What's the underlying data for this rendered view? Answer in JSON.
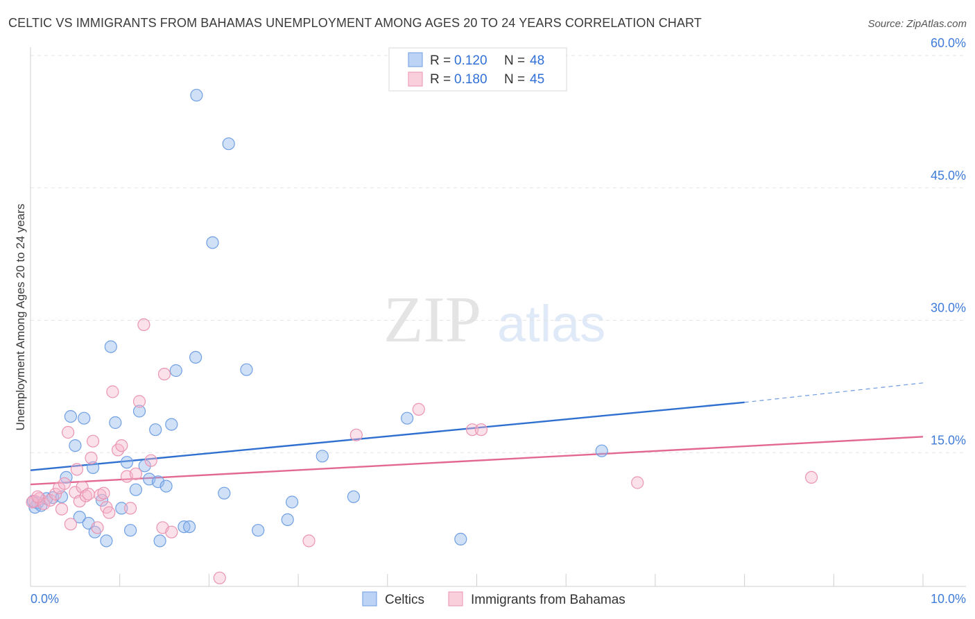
{
  "title": "CELTIC VS IMMIGRANTS FROM BAHAMAS UNEMPLOYMENT AMONG AGES 20 TO 24 YEARS CORRELATION CHART",
  "source": "Source: ZipAtlas.com",
  "watermark": {
    "zip": "ZIP",
    "atlas": "atlas"
  },
  "chart_data": {
    "type": "scatter",
    "title": "CELTIC VS IMMIGRANTS FROM BAHAMAS UNEMPLOYMENT AMONG AGES 20 TO 24 YEARS CORRELATION CHART",
    "xlabel": "",
    "ylabel": "Unemployment Among Ages 20 to 24 years",
    "xlim": [
      0,
      10
    ],
    "ylim": [
      0,
      60
    ],
    "x_tick_labels": {
      "min": "0.0%",
      "max": "10.0%"
    },
    "y_ticks": [
      {
        "value": 15,
        "label": "15.0%"
      },
      {
        "value": 30,
        "label": "30.0%"
      },
      {
        "value": 45,
        "label": "45.0%"
      },
      {
        "value": 60,
        "label": "60.0%"
      }
    ],
    "legend": {
      "rows": [
        {
          "r_label": "R = ",
          "r_value": "0.120",
          "n_label": "N = ",
          "n_value": "48"
        },
        {
          "r_label": "R = ",
          "r_value": "0.180",
          "n_label": "N = ",
          "n_value": "45"
        }
      ]
    },
    "series": [
      {
        "name": "Celtics",
        "color": "#8fb6ec",
        "stroke": "#6f9fe3",
        "line_color": "#2f6fd0",
        "trend": {
          "x0": 0,
          "y0": 13.0,
          "x1": 8.0,
          "y1": 20.7,
          "dash_to_x": 10.0,
          "dash_to_y": 22.9
        },
        "points": [
          [
            0.05,
            8.8
          ],
          [
            0.08,
            9.3
          ],
          [
            0.12,
            9.0
          ],
          [
            0.18,
            9.8
          ],
          [
            0.25,
            9.9
          ],
          [
            0.35,
            10.0
          ],
          [
            0.4,
            12.2
          ],
          [
            0.45,
            19.1
          ],
          [
            0.5,
            15.8
          ],
          [
            0.55,
            7.7
          ],
          [
            0.6,
            18.9
          ],
          [
            0.65,
            7.0
          ],
          [
            0.7,
            13.3
          ],
          [
            0.72,
            6.0
          ],
          [
            0.8,
            9.6
          ],
          [
            0.85,
            5.0
          ],
          [
            0.9,
            27.0
          ],
          [
            0.95,
            18.4
          ],
          [
            1.02,
            8.7
          ],
          [
            1.08,
            13.9
          ],
          [
            1.12,
            6.2
          ],
          [
            1.18,
            10.8
          ],
          [
            1.22,
            19.7
          ],
          [
            1.28,
            13.5
          ],
          [
            1.33,
            12.0
          ],
          [
            1.4,
            17.6
          ],
          [
            1.43,
            11.7
          ],
          [
            1.45,
            5.0
          ],
          [
            1.52,
            11.2
          ],
          [
            1.58,
            18.2
          ],
          [
            1.63,
            24.3
          ],
          [
            1.72,
            6.6
          ],
          [
            1.78,
            6.6
          ],
          [
            1.85,
            25.8
          ],
          [
            1.86,
            55.5
          ],
          [
            2.04,
            38.8
          ],
          [
            2.17,
            10.4
          ],
          [
            2.22,
            50.0
          ],
          [
            2.42,
            24.4
          ],
          [
            2.55,
            6.2
          ],
          [
            2.88,
            7.4
          ],
          [
            2.93,
            9.4
          ],
          [
            3.27,
            14.6
          ],
          [
            3.62,
            10.0
          ],
          [
            4.22,
            18.9
          ],
          [
            4.82,
            5.2
          ],
          [
            6.4,
            15.2
          ],
          [
            0.03,
            9.5
          ]
        ]
      },
      {
        "name": "Immigrants from Bahamas",
        "color": "#f5b8cc",
        "stroke": "#ea94b1",
        "line_color": "#e2688f",
        "trend": {
          "x0": 0,
          "y0": 11.4,
          "x1": 10.0,
          "y1": 16.8
        },
        "points": [
          [
            0.05,
            9.5
          ],
          [
            0.1,
            9.8
          ],
          [
            0.15,
            9.2
          ],
          [
            0.22,
            9.6
          ],
          [
            0.28,
            10.3
          ],
          [
            0.32,
            11.0
          ],
          [
            0.35,
            8.6
          ],
          [
            0.38,
            11.5
          ],
          [
            0.42,
            17.3
          ],
          [
            0.45,
            6.9
          ],
          [
            0.5,
            10.5
          ],
          [
            0.52,
            13.1
          ],
          [
            0.55,
            9.5
          ],
          [
            0.58,
            11.1
          ],
          [
            0.62,
            10.1
          ],
          [
            0.65,
            10.3
          ],
          [
            0.68,
            14.4
          ],
          [
            0.7,
            16.3
          ],
          [
            0.75,
            6.5
          ],
          [
            0.78,
            10.2
          ],
          [
            0.82,
            10.4
          ],
          [
            0.85,
            8.8
          ],
          [
            0.88,
            8.2
          ],
          [
            0.92,
            21.9
          ],
          [
            0.98,
            15.3
          ],
          [
            1.02,
            15.8
          ],
          [
            1.08,
            12.3
          ],
          [
            1.12,
            8.7
          ],
          [
            1.18,
            12.6
          ],
          [
            1.22,
            20.8
          ],
          [
            1.27,
            29.5
          ],
          [
            1.35,
            14.1
          ],
          [
            1.48,
            6.5
          ],
          [
            1.5,
            23.9
          ],
          [
            1.58,
            6.0
          ],
          [
            2.12,
            0.8
          ],
          [
            3.12,
            5.0
          ],
          [
            3.65,
            17.0
          ],
          [
            4.35,
            19.9
          ],
          [
            4.95,
            17.6
          ],
          [
            5.05,
            17.6
          ],
          [
            6.8,
            11.6
          ],
          [
            8.75,
            12.2
          ],
          [
            0.02,
            9.4
          ],
          [
            0.08,
            10.0
          ]
        ]
      }
    ]
  }
}
